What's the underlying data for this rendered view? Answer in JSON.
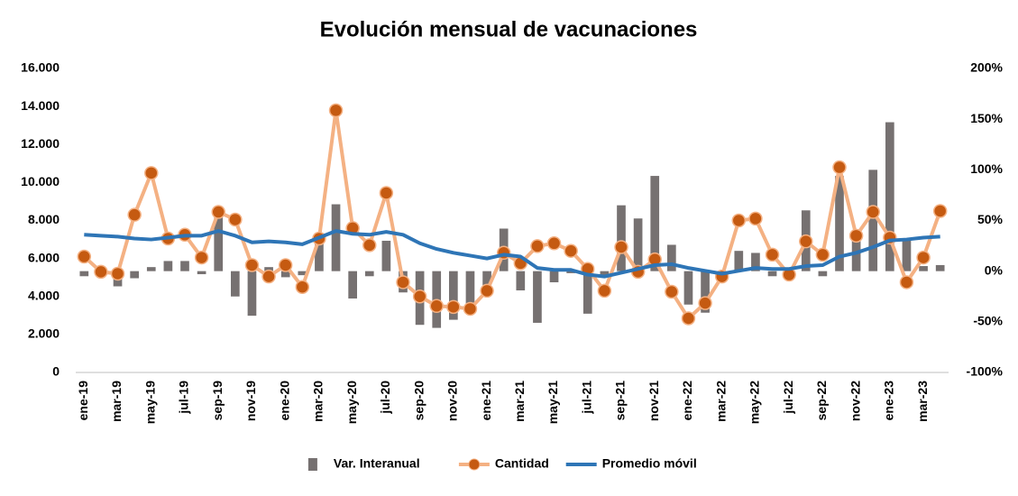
{
  "chart_data": {
    "type": "combo",
    "title": "Evolución mensual de vacunaciones",
    "categories": [
      "ene-19",
      null,
      "mar-19",
      null,
      "may-19",
      null,
      "jul-19",
      null,
      "sep-19",
      null,
      "nov-19",
      null,
      "ene-20",
      null,
      "mar-20",
      null,
      "may-20",
      null,
      "jul-20",
      null,
      "sep-20",
      null,
      "nov-20",
      null,
      "ene-21",
      null,
      "mar-21",
      null,
      "may-21",
      null,
      "jul-21",
      null,
      "sep-21",
      null,
      "nov-21",
      null,
      "ene-22",
      null,
      "mar-22",
      null,
      "may-22",
      null,
      "jul-22",
      null,
      "sep-22",
      null,
      "nov-22",
      null,
      "ene-23",
      null,
      "mar-23",
      null
    ],
    "series": [
      {
        "name": "Var. Interanual",
        "type": "bar",
        "axis": "y2",
        "color": "#767171",
        "values": [
          -5,
          -2,
          -15,
          -7,
          4,
          10,
          10,
          -3,
          53,
          -25,
          -44,
          4,
          -6,
          -4,
          29,
          66,
          -27,
          -5,
          30,
          -21,
          -53,
          -56,
          -48,
          -40,
          -14,
          42,
          -19,
          -51,
          -11,
          -2,
          -42,
          -6,
          65,
          52,
          94,
          26,
          -33,
          -41,
          -3,
          20,
          18,
          -5,
          -1,
          60,
          -5,
          94,
          34,
          100,
          147,
          32,
          5,
          6
        ]
      },
      {
        "name": "Cantidad",
        "type": "line",
        "marker": true,
        "color": "#f4b183",
        "marker_color": "#c55a11",
        "values": [
          6100,
          5300,
          5200,
          8300,
          10500,
          7050,
          7250,
          6050,
          8450,
          8050,
          5650,
          5050,
          5650,
          4500,
          7050,
          13800,
          7600,
          6700,
          9450,
          4750,
          4000,
          3500,
          3450,
          3350,
          4300,
          6300,
          5750,
          6650,
          6800,
          6400,
          5450,
          4300,
          6600,
          5300,
          5950,
          4250,
          2850,
          3650,
          5050,
          8000,
          8100,
          6200,
          5150,
          6900,
          6200,
          10800,
          7200,
          8450,
          7100,
          4750,
          6050,
          8500
        ]
      },
      {
        "name": "Promedio móvil",
        "type": "line",
        "marker": false,
        "color": "#2e75b6",
        "values": [
          7250,
          7200,
          7150,
          7050,
          7000,
          7100,
          7200,
          7200,
          7450,
          7200,
          6850,
          6900,
          6850,
          6750,
          7100,
          7450,
          7300,
          7250,
          7400,
          7250,
          6800,
          6500,
          6300,
          6150,
          6000,
          6200,
          6100,
          5500,
          5400,
          5400,
          5150,
          5050,
          5250,
          5450,
          5650,
          5700,
          5500,
          5350,
          5200,
          5350,
          5500,
          5450,
          5450,
          5600,
          5650,
          6100,
          6300,
          6600,
          6950,
          7000,
          7100,
          7150
        ]
      }
    ],
    "ylim": [
      0,
      16000
    ],
    "yticks": [
      0,
      {
        "value": 2000,
        "label": "2.000"
      },
      {
        "value": 4000,
        "label": "4.000"
      },
      {
        "value": 6000,
        "label": "6.000"
      },
      {
        "value": 8000,
        "label": "8.000"
      },
      {
        "value": 10000,
        "label": "10.000"
      },
      {
        "value": 12000,
        "label": "12.000"
      },
      {
        "value": 14000,
        "label": "14.000"
      },
      {
        "value": 16000,
        "label": "16.000"
      }
    ],
    "y2lim": [
      -100,
      200
    ],
    "y2ticks": [
      {
        "value": -100,
        "label": "-100%"
      },
      {
        "value": -50,
        "label": "-50%"
      },
      {
        "value": 0,
        "label": "0%"
      },
      {
        "value": 50,
        "label": "50%"
      },
      {
        "value": 100,
        "label": "100%"
      },
      {
        "value": 150,
        "label": "150%"
      },
      {
        "value": 200,
        "label": "200%"
      }
    ],
    "legend": "bottom"
  }
}
